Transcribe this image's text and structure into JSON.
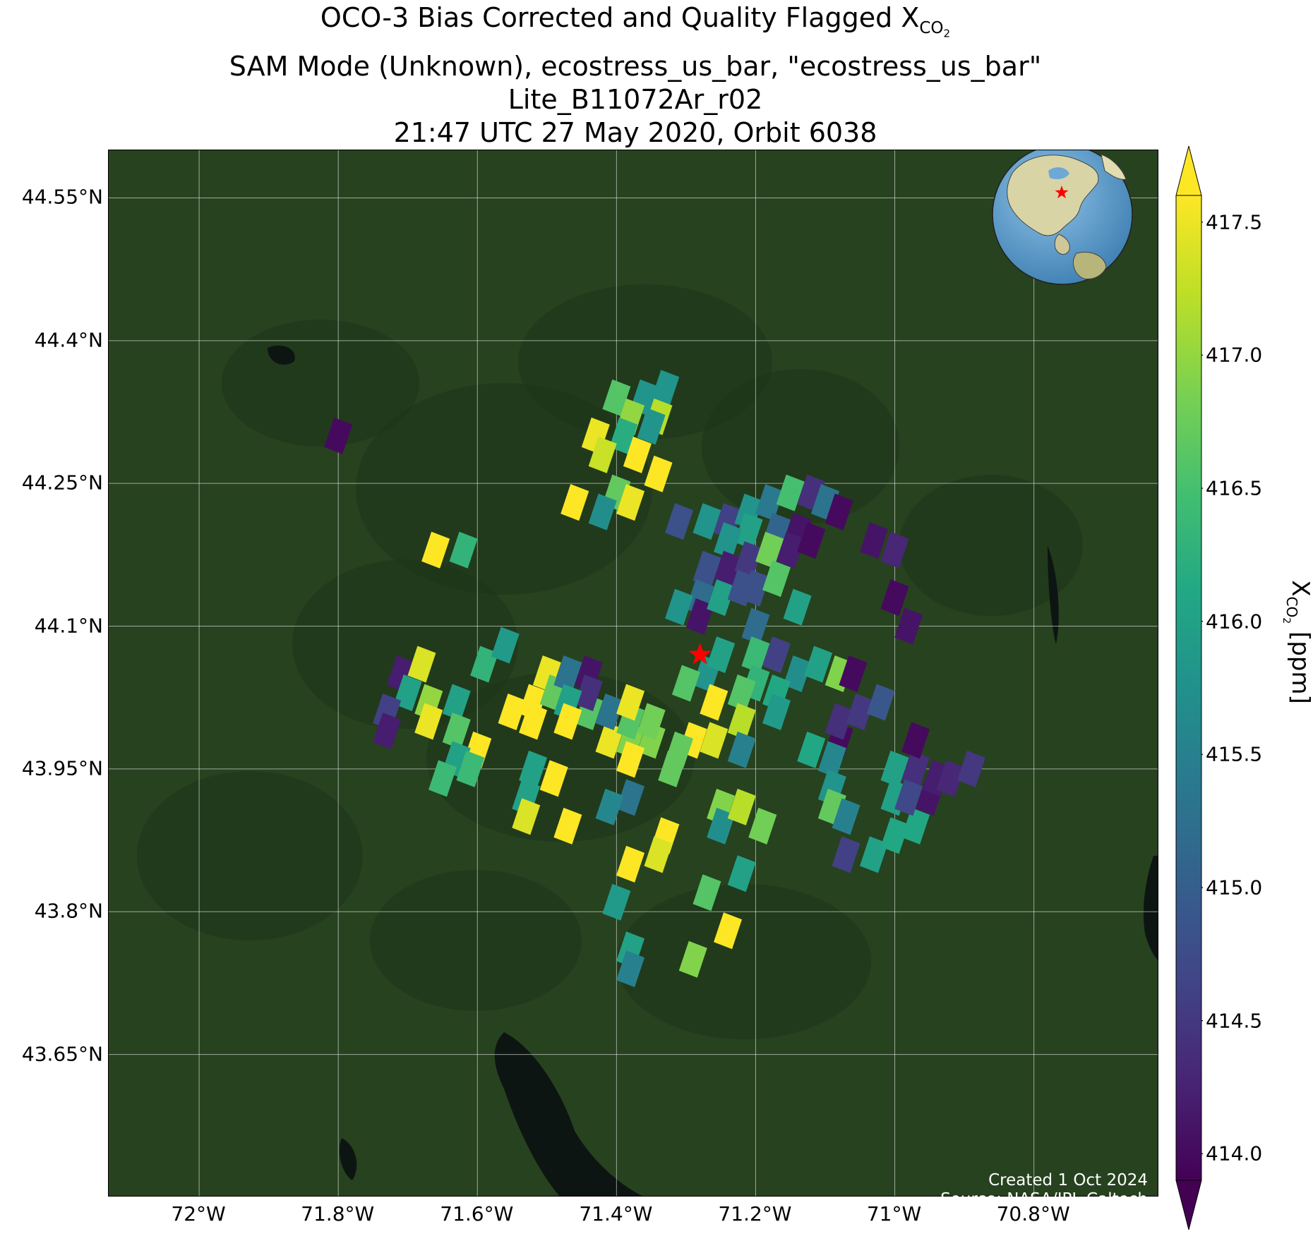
{
  "title": {
    "line1_prefix": "OCO-3 Bias Corrected and Quality Flagged X",
    "line1_sub": "CO",
    "line1_subsub": "2",
    "line2": "SAM Mode (Unknown), ecostress_us_bar, \"ecostress_us_bar\"",
    "line3": "Lite_B11072Ar_r02",
    "line4": "21:47 UTC 27 May 2020, Orbit 6038"
  },
  "map": {
    "lon_range": [
      -72.13,
      -70.62
    ],
    "lat_range": [
      43.5,
      44.6
    ],
    "lat_ticks": [
      {
        "value": 44.55,
        "label": "44.55°N"
      },
      {
        "value": 44.4,
        "label": "44.4°N"
      },
      {
        "value": 44.25,
        "label": "44.25°N"
      },
      {
        "value": 44.1,
        "label": "44.1°N"
      },
      {
        "value": 43.95,
        "label": "43.95°N"
      },
      {
        "value": 43.8,
        "label": "43.8°N"
      },
      {
        "value": 43.65,
        "label": "43.65°N"
      }
    ],
    "lon_ticks": [
      {
        "value": -72.0,
        "label": "72°W"
      },
      {
        "value": -71.8,
        "label": "71.8°W"
      },
      {
        "value": -71.6,
        "label": "71.6°W"
      },
      {
        "value": -71.4,
        "label": "71.4°W"
      },
      {
        "value": -71.2,
        "label": "71.2°W"
      },
      {
        "value": -71.0,
        "label": "71°W"
      },
      {
        "value": -70.8,
        "label": "70.8°W"
      }
    ],
    "grid": true,
    "target": {
      "lon": -71.28,
      "lat": 44.07,
      "color": "#ff0000"
    },
    "basemap_colors": {
      "land": "#27421f",
      "water": "#0d1512",
      "ridge": "#1d3418"
    }
  },
  "credits": {
    "line1": "Created 1 Oct 2024",
    "line2": "Source: NASA/JPL-Caltech"
  },
  "colorbar": {
    "colormap": "viridis",
    "min": 413.9,
    "max": 417.6,
    "extend": "both",
    "ticks": [
      {
        "value": 417.5,
        "label": "417.5"
      },
      {
        "value": 417.0,
        "label": "417.0"
      },
      {
        "value": 416.5,
        "label": "416.5"
      },
      {
        "value": 416.0,
        "label": "416.0"
      },
      {
        "value": 415.5,
        "label": "415.5"
      },
      {
        "value": 415.0,
        "label": "415.0"
      },
      {
        "value": 414.5,
        "label": "414.5"
      },
      {
        "value": 414.0,
        "label": "414.0"
      }
    ],
    "label_prefix": "X",
    "label_sub": "CO",
    "label_subsub": "2",
    "label_suffix": " [ppm]"
  },
  "chart_data": {
    "type": "scatter",
    "x_unit": "longitude (deg E)",
    "y_unit": "latitude (deg N)",
    "value_unit": "ppm",
    "soundings": [
      {
        "lon": -71.4,
        "lat": 44.34,
        "xco2": 416.6
      },
      {
        "lon": -71.36,
        "lat": 44.34,
        "xco2": 415.8
      },
      {
        "lon": -71.33,
        "lat": 44.35,
        "xco2": 415.8
      },
      {
        "lon": -71.38,
        "lat": 44.32,
        "xco2": 417.0
      },
      {
        "lon": -71.34,
        "lat": 44.32,
        "xco2": 417.2
      },
      {
        "lon": -71.43,
        "lat": 44.3,
        "xco2": 417.5
      },
      {
        "lon": -71.39,
        "lat": 44.3,
        "xco2": 416.2
      },
      {
        "lon": -71.35,
        "lat": 44.31,
        "xco2": 415.8
      },
      {
        "lon": -71.42,
        "lat": 44.28,
        "xco2": 417.3
      },
      {
        "lon": -71.37,
        "lat": 44.28,
        "xco2": 417.6
      },
      {
        "lon": -71.34,
        "lat": 44.26,
        "xco2": 417.6
      },
      {
        "lon": -71.4,
        "lat": 44.24,
        "xco2": 416.7
      },
      {
        "lon": -71.38,
        "lat": 44.23,
        "xco2": 417.5
      },
      {
        "lon": -71.46,
        "lat": 44.23,
        "xco2": 417.6
      },
      {
        "lon": -71.42,
        "lat": 44.22,
        "xco2": 415.7
      },
      {
        "lon": -71.8,
        "lat": 44.3,
        "xco2": 414.0
      },
      {
        "lon": -71.66,
        "lat": 44.18,
        "xco2": 417.6
      },
      {
        "lon": -71.62,
        "lat": 44.18,
        "xco2": 416.3
      },
      {
        "lon": -71.31,
        "lat": 44.21,
        "xco2": 414.8
      },
      {
        "lon": -71.27,
        "lat": 44.21,
        "xco2": 415.8
      },
      {
        "lon": -71.24,
        "lat": 44.21,
        "xco2": 414.6
      },
      {
        "lon": -71.21,
        "lat": 44.22,
        "xco2": 415.8
      },
      {
        "lon": -71.18,
        "lat": 44.23,
        "xco2": 415.4
      },
      {
        "lon": -71.15,
        "lat": 44.24,
        "xco2": 416.5
      },
      {
        "lon": -71.12,
        "lat": 44.24,
        "xco2": 414.4
      },
      {
        "lon": -71.1,
        "lat": 44.23,
        "xco2": 415.3
      },
      {
        "lon": -71.08,
        "lat": 44.22,
        "xco2": 414.0
      },
      {
        "lon": -71.14,
        "lat": 44.2,
        "xco2": 414.1
      },
      {
        "lon": -71.17,
        "lat": 44.2,
        "xco2": 415.1
      },
      {
        "lon": -71.21,
        "lat": 44.2,
        "xco2": 416.0
      },
      {
        "lon": -71.24,
        "lat": 44.19,
        "xco2": 415.8
      },
      {
        "lon": -71.27,
        "lat": 44.16,
        "xco2": 414.8
      },
      {
        "lon": -71.24,
        "lat": 44.16,
        "xco2": 414.2
      },
      {
        "lon": -71.21,
        "lat": 44.17,
        "xco2": 414.5
      },
      {
        "lon": -71.18,
        "lat": 44.18,
        "xco2": 416.8
      },
      {
        "lon": -71.15,
        "lat": 44.18,
        "xco2": 414.2
      },
      {
        "lon": -71.12,
        "lat": 44.19,
        "xco2": 414.0
      },
      {
        "lon": -71.28,
        "lat": 44.13,
        "xco2": 415.2
      },
      {
        "lon": -71.31,
        "lat": 44.12,
        "xco2": 415.8
      },
      {
        "lon": -71.28,
        "lat": 44.11,
        "xco2": 414.1
      },
      {
        "lon": -71.25,
        "lat": 44.13,
        "xco2": 416.0
      },
      {
        "lon": -71.22,
        "lat": 44.14,
        "xco2": 414.8
      },
      {
        "lon": -71.2,
        "lat": 44.14,
        "xco2": 414.8
      },
      {
        "lon": -71.17,
        "lat": 44.15,
        "xco2": 416.6
      },
      {
        "lon": -71.14,
        "lat": 44.12,
        "xco2": 416.0
      },
      {
        "lon": -71.2,
        "lat": 44.1,
        "xco2": 415.2
      },
      {
        "lon": -71.2,
        "lat": 44.07,
        "xco2": 416.4
      },
      {
        "lon": -71.17,
        "lat": 44.07,
        "xco2": 414.6
      },
      {
        "lon": -71.14,
        "lat": 44.05,
        "xco2": 415.7
      },
      {
        "lon": -71.11,
        "lat": 44.06,
        "xco2": 416.0
      },
      {
        "lon": -71.08,
        "lat": 44.05,
        "xco2": 416.9
      },
      {
        "lon": -71.06,
        "lat": 44.05,
        "xco2": 414.0
      },
      {
        "lon": -71.2,
        "lat": 44.04,
        "xco2": 416.3
      },
      {
        "lon": -71.17,
        "lat": 44.03,
        "xco2": 416.1
      },
      {
        "lon": -71.17,
        "lat": 44.01,
        "xco2": 415.9
      },
      {
        "lon": -71.03,
        "lat": 44.19,
        "xco2": 414.1
      },
      {
        "lon": -71.0,
        "lat": 44.18,
        "xco2": 414.3
      },
      {
        "lon": -71.0,
        "lat": 44.13,
        "xco2": 414.0
      },
      {
        "lon": -70.98,
        "lat": 44.1,
        "xco2": 414.1
      },
      {
        "lon": -71.27,
        "lat": 44.05,
        "xco2": 415.8
      },
      {
        "lon": -71.3,
        "lat": 44.04,
        "xco2": 416.6
      },
      {
        "lon": -71.25,
        "lat": 44.07,
        "xco2": 416.0
      },
      {
        "lon": -71.26,
        "lat": 44.02,
        "xco2": 417.6
      },
      {
        "lon": -71.22,
        "lat": 44.03,
        "xco2": 416.6
      },
      {
        "lon": -71.22,
        "lat": 44.0,
        "xco2": 417.2
      },
      {
        "lon": -71.26,
        "lat": 43.98,
        "xco2": 417.4
      },
      {
        "lon": -71.29,
        "lat": 43.98,
        "xco2": 417.6
      },
      {
        "lon": -71.22,
        "lat": 43.97,
        "xco2": 415.5
      },
      {
        "lon": -71.31,
        "lat": 43.97,
        "xco2": 416.7
      },
      {
        "lon": -71.35,
        "lat": 43.98,
        "xco2": 416.9
      },
      {
        "lon": -71.38,
        "lat": 43.98,
        "xco2": 416.9
      },
      {
        "lon": -71.41,
        "lat": 43.98,
        "xco2": 417.5
      },
      {
        "lon": -71.38,
        "lat": 44.0,
        "xco2": 416.6
      },
      {
        "lon": -71.35,
        "lat": 44.0,
        "xco2": 416.8
      },
      {
        "lon": -71.41,
        "lat": 44.01,
        "xco2": 415.3
      },
      {
        "lon": -71.38,
        "lat": 44.02,
        "xco2": 417.5
      },
      {
        "lon": -71.44,
        "lat": 44.01,
        "xco2": 416.6
      },
      {
        "lon": -71.38,
        "lat": 43.96,
        "xco2": 417.6
      },
      {
        "lon": -71.32,
        "lat": 43.95,
        "xco2": 416.7
      },
      {
        "lon": -71.38,
        "lat": 43.92,
        "xco2": 415.3
      },
      {
        "lon": -71.41,
        "lat": 43.91,
        "xco2": 415.6
      },
      {
        "lon": -71.25,
        "lat": 43.91,
        "xco2": 416.9
      },
      {
        "lon": -71.25,
        "lat": 43.89,
        "xco2": 415.7
      },
      {
        "lon": -71.22,
        "lat": 43.91,
        "xco2": 417.2
      },
      {
        "lon": -71.19,
        "lat": 43.89,
        "xco2": 416.8
      },
      {
        "lon": -71.33,
        "lat": 43.88,
        "xco2": 417.6
      },
      {
        "lon": -71.34,
        "lat": 43.86,
        "xco2": 417.4
      },
      {
        "lon": -71.38,
        "lat": 43.85,
        "xco2": 417.6
      },
      {
        "lon": -71.22,
        "lat": 43.84,
        "xco2": 416.0
      },
      {
        "lon": -71.27,
        "lat": 43.82,
        "xco2": 416.6
      },
      {
        "lon": -71.4,
        "lat": 43.81,
        "xco2": 415.9
      },
      {
        "lon": -71.24,
        "lat": 43.78,
        "xco2": 417.6
      },
      {
        "lon": -71.38,
        "lat": 43.76,
        "xco2": 416.0
      },
      {
        "lon": -71.38,
        "lat": 43.74,
        "xco2": 415.5
      },
      {
        "lon": -71.29,
        "lat": 43.75,
        "xco2": 416.9
      },
      {
        "lon": -71.71,
        "lat": 44.05,
        "xco2": 414.2
      },
      {
        "lon": -71.68,
        "lat": 44.06,
        "xco2": 417.4
      },
      {
        "lon": -71.7,
        "lat": 44.03,
        "xco2": 416.0
      },
      {
        "lon": -71.73,
        "lat": 44.01,
        "xco2": 414.6
      },
      {
        "lon": -71.73,
        "lat": 43.99,
        "xco2": 414.2
      },
      {
        "lon": -71.67,
        "lat": 44.02,
        "xco2": 417.0
      },
      {
        "lon": -71.67,
        "lat": 44.0,
        "xco2": 417.5
      },
      {
        "lon": -71.63,
        "lat": 44.02,
        "xco2": 416.0
      },
      {
        "lon": -71.63,
        "lat": 43.99,
        "xco2": 416.6
      },
      {
        "lon": -71.59,
        "lat": 44.06,
        "xco2": 416.3
      },
      {
        "lon": -71.56,
        "lat": 44.08,
        "xco2": 415.9
      },
      {
        "lon": -71.55,
        "lat": 44.01,
        "xco2": 417.6
      },
      {
        "lon": -71.52,
        "lat": 44.02,
        "xco2": 417.6
      },
      {
        "lon": -71.5,
        "lat": 44.05,
        "xco2": 417.5
      },
      {
        "lon": -71.49,
        "lat": 44.03,
        "xco2": 416.7
      },
      {
        "lon": -71.52,
        "lat": 44.0,
        "xco2": 417.6
      },
      {
        "lon": -71.47,
        "lat": 44.05,
        "xco2": 415.3
      },
      {
        "lon": -71.44,
        "lat": 44.05,
        "xco2": 414.1
      },
      {
        "lon": -71.44,
        "lat": 44.03,
        "xco2": 414.4
      },
      {
        "lon": -71.47,
        "lat": 44.02,
        "xco2": 416.0
      },
      {
        "lon": -71.47,
        "lat": 44.0,
        "xco2": 417.6
      },
      {
        "lon": -71.6,
        "lat": 43.97,
        "xco2": 417.6
      },
      {
        "lon": -71.63,
        "lat": 43.96,
        "xco2": 416.0
      },
      {
        "lon": -71.61,
        "lat": 43.95,
        "xco2": 416.4
      },
      {
        "lon": -71.65,
        "lat": 43.94,
        "xco2": 416.4
      },
      {
        "lon": -71.52,
        "lat": 43.95,
        "xco2": 416.0
      },
      {
        "lon": -71.49,
        "lat": 43.94,
        "xco2": 417.6
      },
      {
        "lon": -71.53,
        "lat": 43.92,
        "xco2": 416.0
      },
      {
        "lon": -71.53,
        "lat": 43.9,
        "xco2": 417.4
      },
      {
        "lon": -71.47,
        "lat": 43.89,
        "xco2": 417.6
      },
      {
        "lon": -71.12,
        "lat": 43.97,
        "xco2": 416.1
      },
      {
        "lon": -71.08,
        "lat": 43.98,
        "xco2": 414.0
      },
      {
        "lon": -71.08,
        "lat": 44.0,
        "xco2": 414.4
      },
      {
        "lon": -71.05,
        "lat": 44.01,
        "xco2": 414.5
      },
      {
        "lon": -71.02,
        "lat": 44.02,
        "xco2": 414.9
      },
      {
        "lon": -71.09,
        "lat": 43.96,
        "xco2": 415.6
      },
      {
        "lon": -71.09,
        "lat": 43.93,
        "xco2": 415.8
      },
      {
        "lon": -71.09,
        "lat": 43.91,
        "xco2": 416.7
      },
      {
        "lon": -71.07,
        "lat": 43.9,
        "xco2": 415.5
      },
      {
        "lon": -71.07,
        "lat": 43.86,
        "xco2": 414.6
      },
      {
        "lon": -71.03,
        "lat": 43.86,
        "xco2": 416.0
      },
      {
        "lon": -71.0,
        "lat": 43.88,
        "xco2": 416.1
      },
      {
        "lon": -70.97,
        "lat": 43.89,
        "xco2": 416.1
      },
      {
        "lon": -71.0,
        "lat": 43.92,
        "xco2": 416.0
      },
      {
        "lon": -71.0,
        "lat": 43.95,
        "xco2": 416.0
      },
      {
        "lon": -70.97,
        "lat": 43.95,
        "xco2": 414.4
      },
      {
        "lon": -70.97,
        "lat": 43.98,
        "xco2": 414.0
      },
      {
        "lon": -70.98,
        "lat": 43.92,
        "xco2": 414.7
      },
      {
        "lon": -70.95,
        "lat": 43.92,
        "xco2": 414.1
      },
      {
        "lon": -70.94,
        "lat": 43.94,
        "xco2": 414.2
      },
      {
        "lon": -70.92,
        "lat": 43.94,
        "xco2": 414.3
      },
      {
        "lon": -70.89,
        "lat": 43.95,
        "xco2": 414.5
      }
    ]
  }
}
